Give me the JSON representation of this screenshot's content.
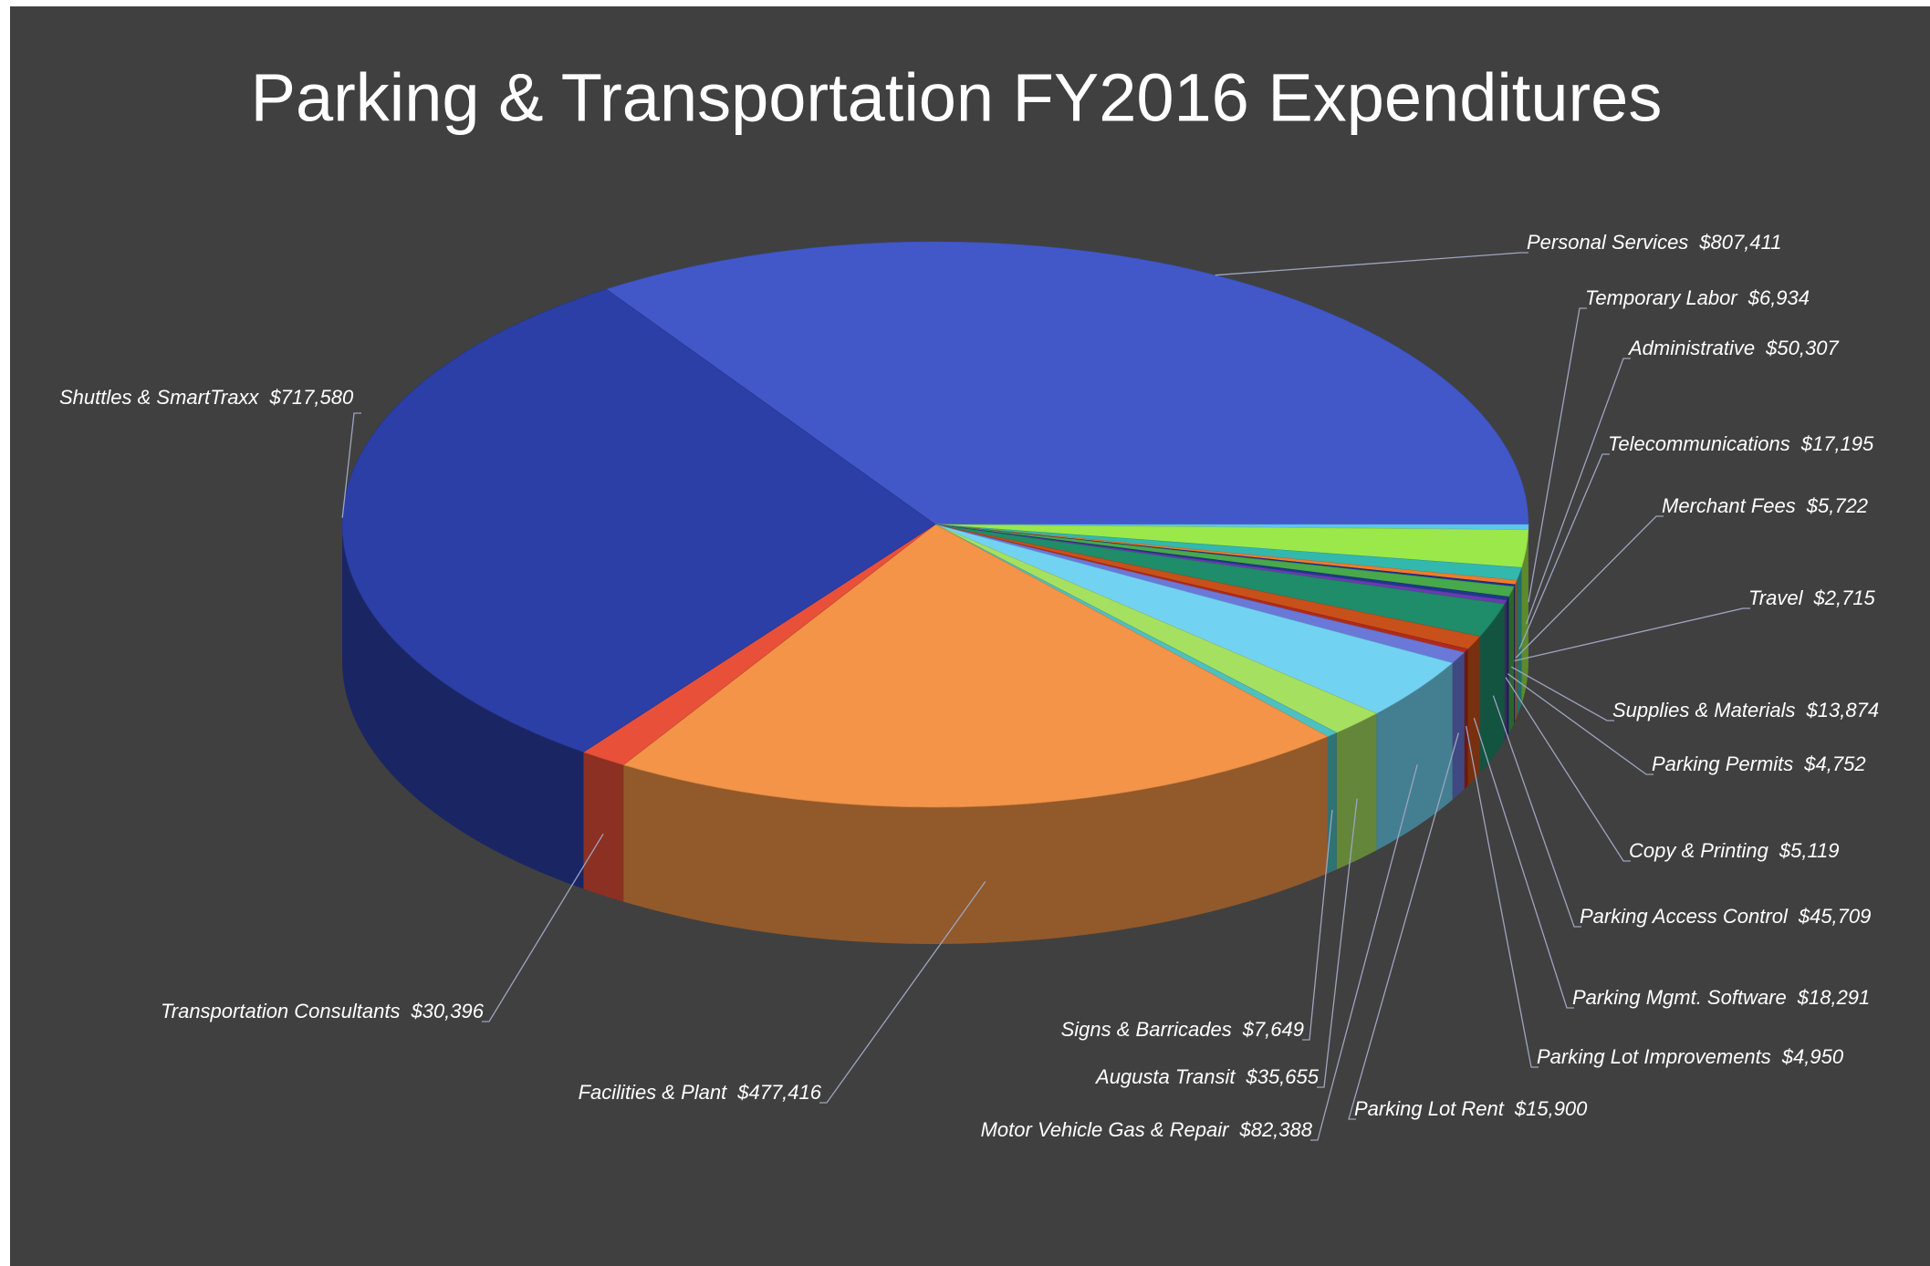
{
  "chart_data": {
    "type": "pie3d",
    "title": "Parking & Transportation FY2016 Expenditures",
    "categories": [
      "Personal Services",
      "Temporary Labor",
      "Administrative",
      "Telecommunications",
      "Merchant Fees",
      "Travel",
      "Supplies & Materials",
      "Parking Permits",
      "Copy & Printing",
      "Parking Access Control",
      "Parking Mgmt. Software",
      "Parking Lot Improvements",
      "Parking Lot Rent",
      "Motor Vehicle Gas & Repair",
      "Augusta Transit",
      "Signs & Barricades",
      "Facilities & Plant",
      "Transportation  Consultants",
      "Shuttles & SmartTraxx"
    ],
    "values": [
      807411,
      6934,
      50307,
      17195,
      5722,
      2715,
      13874,
      4752,
      5119,
      45709,
      18291,
      4950,
      15900,
      82388,
      35655,
      7649,
      477416,
      30396,
      717580
    ],
    "value_labels": [
      "$807,411",
      "$6,934",
      "$50,307",
      "$17,195",
      "$5,722",
      "$2,715",
      "$13,874",
      "$4,752",
      "$5,119",
      "$45,709",
      "$18,291",
      "$4,950",
      "$15,900",
      "$82,388",
      "$35,655",
      "$7,649",
      "$477,416",
      "$30,396",
      "$717,580"
    ],
    "colors": [
      "#4258c8",
      "#5cc6ee",
      "#9be84a",
      "#33b8ae",
      "#f07c2a",
      "#1f2f90",
      "#47a84c",
      "#1c3a8a",
      "#6a3ab0",
      "#1f8c6a",
      "#c8501a",
      "#b02a1a",
      "#6a78d8",
      "#72d2f2",
      "#a6e060",
      "#4fc0c0",
      "#f39448",
      "#e8503a",
      "#2c3fa6"
    ]
  }
}
